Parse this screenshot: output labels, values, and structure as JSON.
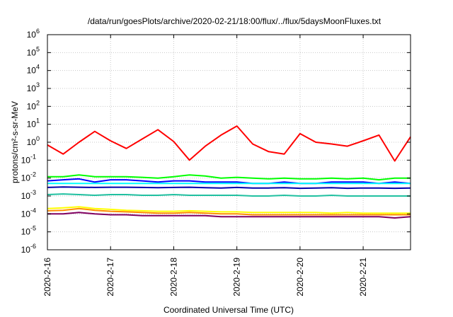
{
  "chart_data": {
    "type": "line",
    "title": "/data/run/goesPlots/archive/2020-02-21/18:00/flux/../flux/5daysMoonFluxes.txt",
    "xlabel": "Coordinated Universal Time (UTC)",
    "ylabel": "protons/cm²-s-sr-MeV",
    "yscale": "log",
    "ylim": [
      1e-06,
      1000000.0
    ],
    "xlim": [
      "2020-02-16 00:00",
      "2020-02-21 18:00"
    ],
    "grid": true,
    "legend": "none",
    "x_ticks": [
      "2020-2-16",
      "2020-2-17",
      "2020-2-18",
      "2020-2-19",
      "2020-2-20",
      "2020-2-21"
    ],
    "y_ticks": [
      {
        "base": "10",
        "exp": "-6"
      },
      {
        "base": "10",
        "exp": "-5"
      },
      {
        "base": "10",
        "exp": "-4"
      },
      {
        "base": "10",
        "exp": "-3"
      },
      {
        "base": "10",
        "exp": "-2"
      },
      {
        "base": "10",
        "exp": "-1"
      },
      {
        "base": "10",
        "exp": "0"
      },
      {
        "base": "10",
        "exp": "1"
      },
      {
        "base": "10",
        "exp": "2"
      },
      {
        "base": "10",
        "exp": "3"
      },
      {
        "base": "10",
        "exp": "4"
      },
      {
        "base": "10",
        "exp": "5"
      },
      {
        "base": "10",
        "exp": "6"
      }
    ],
    "x_dates": [
      "2020-02-16 00:00",
      "2020-02-16 06:00",
      "2020-02-16 12:00",
      "2020-02-16 18:00",
      "2020-02-17 00:00",
      "2020-02-17 06:00",
      "2020-02-17 12:00",
      "2020-02-17 18:00",
      "2020-02-18 00:00",
      "2020-02-18 06:00",
      "2020-02-18 12:00",
      "2020-02-18 18:00",
      "2020-02-19 00:00",
      "2020-02-19 06:00",
      "2020-02-19 12:00",
      "2020-02-19 18:00",
      "2020-02-20 00:00",
      "2020-02-20 06:00",
      "2020-02-20 12:00",
      "2020-02-20 18:00",
      "2020-02-21 00:00",
      "2020-02-21 06:00",
      "2020-02-21 12:00",
      "2020-02-21 18:00"
    ],
    "series": [
      {
        "color": "#ff0000",
        "values": [
          0.7,
          0.22,
          1.0,
          4.0,
          1.2,
          0.45,
          1.5,
          5.0,
          1.1,
          0.1,
          0.6,
          2.5,
          8.0,
          0.8,
          0.3,
          0.22,
          3.0,
          1.0,
          0.8,
          0.6,
          1.2,
          2.5,
          0.09,
          2.0
        ]
      },
      {
        "color": "#00ff00",
        "values": [
          0.012,
          0.012,
          0.015,
          0.012,
          0.012,
          0.012,
          0.011,
          0.01,
          0.012,
          0.015,
          0.013,
          0.01,
          0.011,
          0.01,
          0.009,
          0.01,
          0.009,
          0.009,
          0.01,
          0.009,
          0.01,
          0.008,
          0.01,
          0.01
        ]
      },
      {
        "color": "#0000ff",
        "values": [
          0.007,
          0.008,
          0.009,
          0.006,
          0.008,
          0.008,
          0.007,
          0.006,
          0.007,
          0.007,
          0.006,
          0.006,
          0.006,
          0.005,
          0.005,
          0.006,
          0.005,
          0.005,
          0.006,
          0.006,
          0.006,
          0.005,
          0.006,
          0.005
        ]
      },
      {
        "color": "#00ffff",
        "values": [
          0.005,
          0.005,
          0.005,
          0.005,
          0.005,
          0.005,
          0.005,
          0.005,
          0.005,
          0.005,
          0.005,
          0.005,
          0.005,
          0.005,
          0.005,
          0.005,
          0.005,
          0.005,
          0.005,
          0.005,
          0.005,
          0.005,
          0.005,
          0.005
        ]
      },
      {
        "color": "#0000aa",
        "values": [
          0.003,
          0.0032,
          0.0031,
          0.003,
          0.0031,
          0.0031,
          0.003,
          0.0029,
          0.003,
          0.0031,
          0.0029,
          0.0028,
          0.003,
          0.0028,
          0.0028,
          0.0029,
          0.0027,
          0.0028,
          0.0029,
          0.0027,
          0.0028,
          0.0028,
          0.0027,
          0.0028
        ]
      },
      {
        "color": "#20c0a0",
        "values": [
          0.0012,
          0.0013,
          0.0012,
          0.0011,
          0.0012,
          0.0012,
          0.0011,
          0.0011,
          0.0012,
          0.0011,
          0.0011,
          0.0011,
          0.0011,
          0.001,
          0.001,
          0.0011,
          0.001,
          0.001,
          0.0011,
          0.001,
          0.001,
          0.001,
          0.001,
          0.001
        ]
      },
      {
        "color": "#ffff00",
        "values": [
          0.0002,
          0.00022,
          0.00025,
          0.0002,
          0.00018,
          0.00016,
          0.00015,
          0.00014,
          0.00014,
          0.00015,
          0.00014,
          0.00013,
          0.00013,
          0.00012,
          0.00012,
          0.00012,
          0.00012,
          0.00012,
          0.00011,
          0.00012,
          0.00011,
          0.00011,
          0.00011,
          0.00011
        ]
      },
      {
        "color": "#ff8c00",
        "values": [
          0.00015,
          0.00016,
          0.0002,
          0.00016,
          0.00014,
          0.00013,
          0.00012,
          0.00011,
          0.00011,
          0.00012,
          0.00011,
          0.0001,
          0.0001,
          9e-05,
          9e-05,
          9e-05,
          9e-05,
          9e-05,
          9e-05,
          9e-05,
          9e-05,
          9e-05,
          9e-05,
          9e-05
        ]
      },
      {
        "color": "#800060",
        "values": [
          0.0001,
          0.0001,
          0.00012,
          0.0001,
          9e-05,
          9e-05,
          8e-05,
          8e-05,
          8e-05,
          8e-05,
          8e-05,
          7e-05,
          7e-05,
          7e-05,
          7e-05,
          7e-05,
          7e-05,
          7e-05,
          7e-05,
          7e-05,
          7e-05,
          7e-05,
          6e-05,
          7e-05
        ]
      }
    ]
  }
}
